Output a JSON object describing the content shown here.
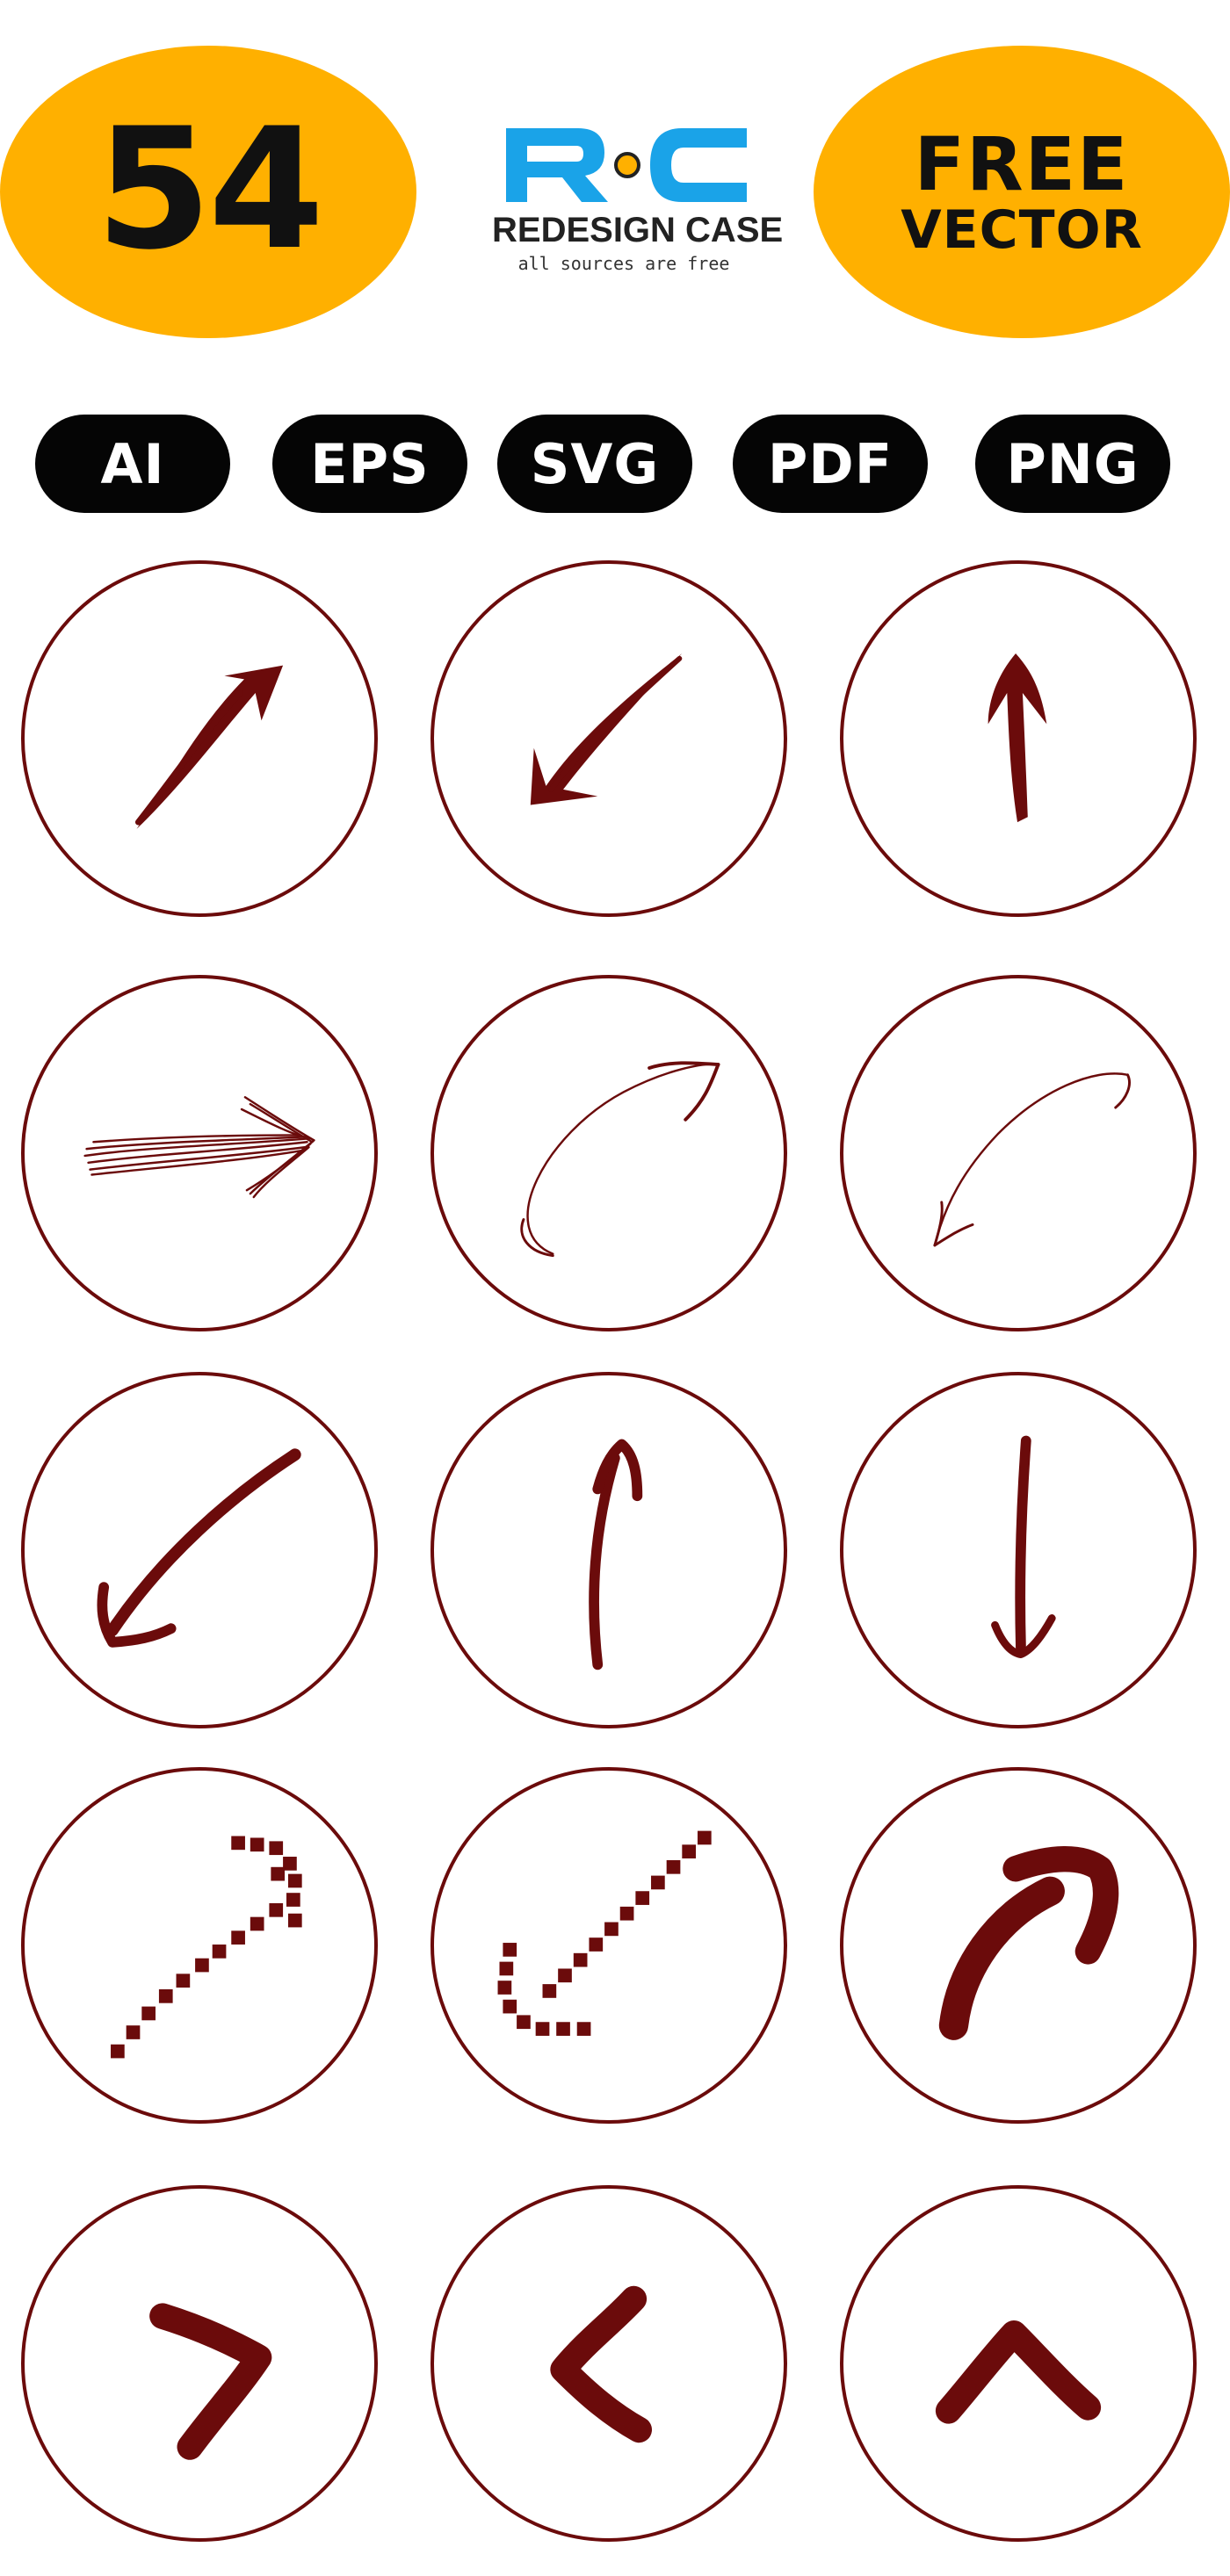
{
  "header": {
    "count": "54",
    "badge_line1": "FREE",
    "badge_line2": "VECTOR",
    "badge_color": "#FFB000"
  },
  "logo": {
    "mark_letters": "RC",
    "name": "REDESIGN CASE",
    "tagline": "all sources are free",
    "brand_blue": "#1AA3E8",
    "dot_yellow": "#FFB000"
  },
  "formats": [
    "AI",
    "EPS",
    "SVG",
    "PDF",
    "PNG"
  ],
  "icon_color": "#6B0B0B",
  "icons": [
    "arrow-up-right-brush-icon",
    "arrow-down-left-brush-icon",
    "arrow-up-brush-icon",
    "arrow-right-sketch-icon",
    "arrow-curved-up-right-thin-icon",
    "arrow-curved-down-left-thin-icon",
    "arrow-down-left-marker-icon",
    "arrow-up-marker-icon",
    "arrow-down-marker-icon",
    "arrow-up-right-dotted-icon",
    "arrow-down-left-dotted-icon",
    "arrow-curved-up-right-bold-icon",
    "chevron-right-bold-icon",
    "chevron-left-bold-icon",
    "chevron-up-bold-icon"
  ]
}
